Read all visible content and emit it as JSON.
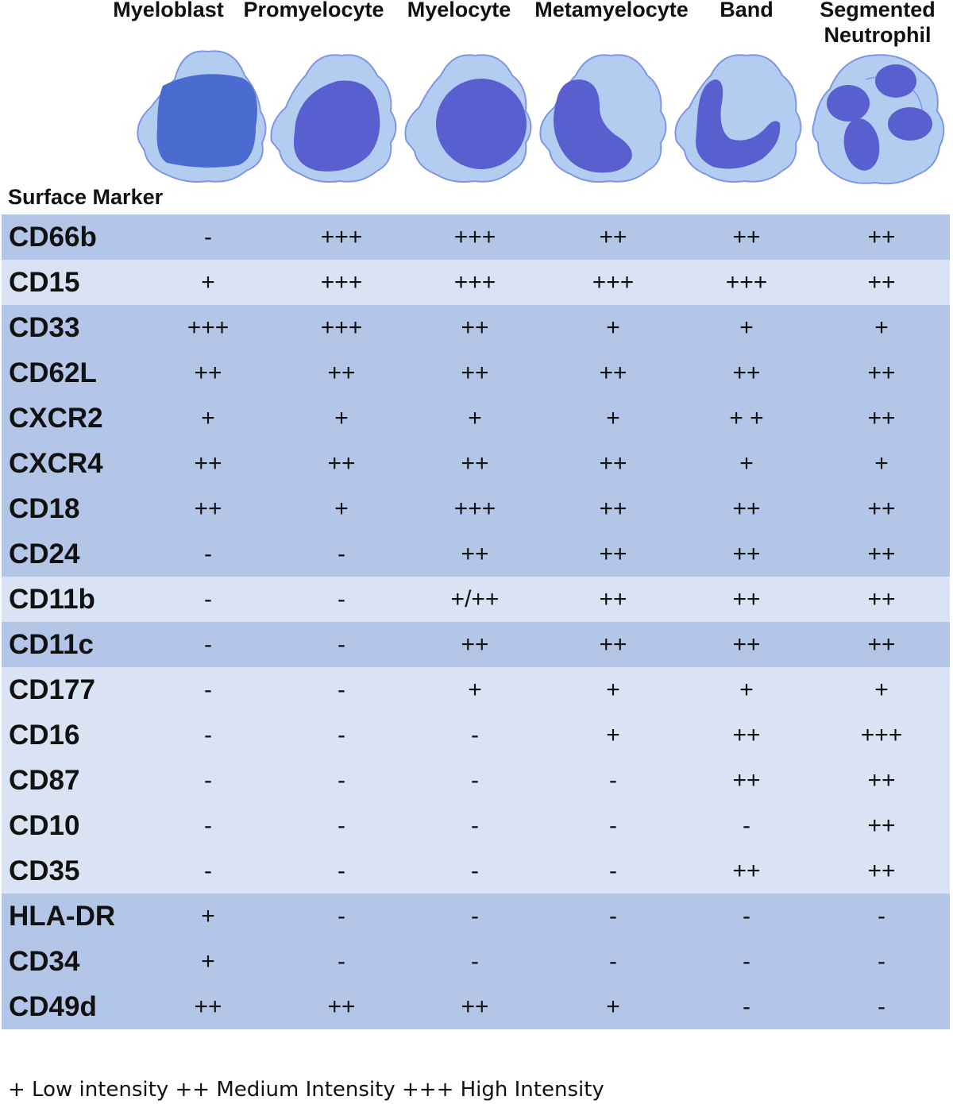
{
  "stages": [
    {
      "label": "Myeloblast",
      "icon": "myeloblast-cell-icon"
    },
    {
      "label": "Promyelocyte",
      "icon": "promyelocyte-cell-icon"
    },
    {
      "label": "Myelocyte",
      "icon": "myelocyte-cell-icon"
    },
    {
      "label": "Metamyelocyte",
      "icon": "metamyelocyte-cell-icon"
    },
    {
      "label": "Band",
      "icon": "band-cell-icon"
    },
    {
      "label": "Segmented\nNeutrophil",
      "icon": "segmented-neutrophil-cell-icon"
    }
  ],
  "marker_heading": "Surface Marker",
  "rows": [
    {
      "marker": "CD66b",
      "values": [
        "-",
        "+++",
        "+++",
        "++",
        "++",
        "++"
      ],
      "shade": "dark"
    },
    {
      "marker": "CD15",
      "values": [
        "+",
        "+++",
        "+++",
        "+++",
        "+++",
        "++"
      ],
      "shade": "light"
    },
    {
      "marker": "CD33",
      "values": [
        "+++",
        "+++",
        "++",
        "+",
        "+",
        "+"
      ],
      "shade": "dark"
    },
    {
      "marker": "CD62L",
      "values": [
        "++",
        "++",
        "++",
        "++",
        "++",
        "++"
      ],
      "shade": "dark"
    },
    {
      "marker": "CXCR2",
      "values": [
        "+",
        "+",
        "+",
        "+",
        "+ +",
        "++"
      ],
      "shade": "dark"
    },
    {
      "marker": "CXCR4",
      "values": [
        "++",
        "++",
        "++",
        "++",
        "+",
        "+"
      ],
      "shade": "dark"
    },
    {
      "marker": "CD18",
      "values": [
        "++",
        "+",
        "+++",
        "++",
        "++",
        "++"
      ],
      "shade": "dark"
    },
    {
      "marker": "CD24",
      "values": [
        "-",
        "-",
        "++",
        "++",
        "++",
        "++"
      ],
      "shade": "dark"
    },
    {
      "marker": "CD11b",
      "values": [
        "-",
        "-",
        "+/++",
        "++",
        "++",
        "++"
      ],
      "shade": "light"
    },
    {
      "marker": "CD11c",
      "values": [
        "-",
        "-",
        "++",
        "++",
        "++",
        "++"
      ],
      "shade": "dark"
    },
    {
      "marker": "CD177",
      "values": [
        "-",
        "-",
        "+",
        "+",
        "+",
        "+"
      ],
      "shade": "light"
    },
    {
      "marker": "CD16",
      "values": [
        "-",
        "-",
        "-",
        "+",
        "++",
        "+++"
      ],
      "shade": "light"
    },
    {
      "marker": "CD87",
      "values": [
        "-",
        "-",
        "-",
        "-",
        "++",
        "++"
      ],
      "shade": "light"
    },
    {
      "marker": "CD10",
      "values": [
        "-",
        "-",
        "-",
        "-",
        "-",
        "++"
      ],
      "shade": "light"
    },
    {
      "marker": "CD35",
      "values": [
        "-",
        "-",
        "-",
        "-",
        "++",
        "++"
      ],
      "shade": "light"
    },
    {
      "marker": "HLA-DR",
      "values": [
        "+",
        "-",
        "-",
        "-",
        "-",
        "-"
      ],
      "shade": "dark"
    },
    {
      "marker": "CD34",
      "values": [
        "+",
        "-",
        "-",
        "-",
        "-",
        "-"
      ],
      "shade": "dark"
    },
    {
      "marker": "CD49d",
      "values": [
        "++",
        "++",
        "++",
        "+",
        "-",
        "-"
      ],
      "shade": "dark"
    }
  ],
  "legend": "+ Low intensity ++ Medium Intensity +++ High Intensity",
  "colors": {
    "row_dark": "#b4c6e7",
    "row_light": "#dae3f3",
    "cytoplasm": "#b3cdf0",
    "cell_outline": "#7f96e6",
    "nucleus": "#5a5fcf"
  }
}
